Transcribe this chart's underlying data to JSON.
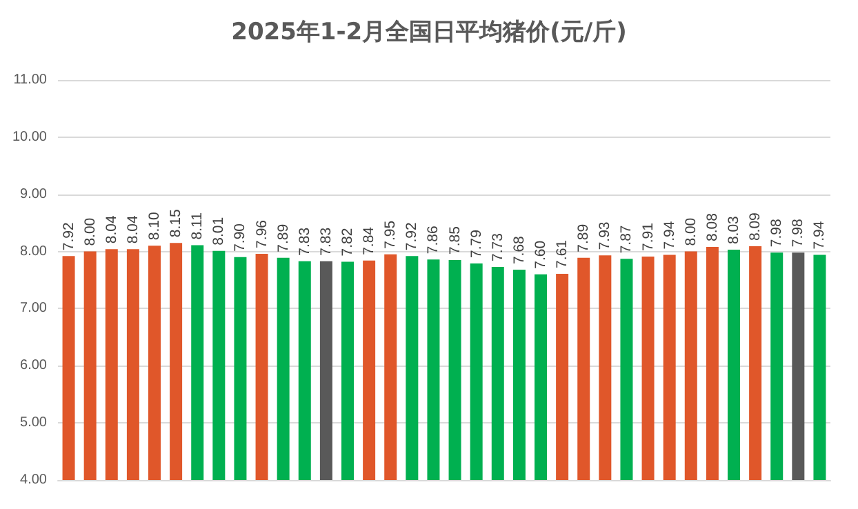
{
  "chart_data": {
    "type": "bar",
    "title": "2025年1-2月全国日平均猪价(元/斤)",
    "categories": [
      null,
      null,
      null,
      null,
      null,
      null,
      null,
      null,
      null,
      null,
      null,
      null,
      null,
      null,
      null,
      null,
      null,
      null,
      null,
      null,
      null,
      null,
      null,
      null,
      null,
      null,
      null,
      null,
      null,
      null,
      null,
      null,
      null,
      null,
      null,
      null
    ],
    "values": [
      7.92,
      8.0,
      8.04,
      8.04,
      8.1,
      8.15,
      8.11,
      8.01,
      7.9,
      7.96,
      7.89,
      7.83,
      7.83,
      7.82,
      7.84,
      7.95,
      7.92,
      7.86,
      7.85,
      7.79,
      7.73,
      7.68,
      7.6,
      7.61,
      7.89,
      7.93,
      7.87,
      7.91,
      7.94,
      8.0,
      8.08,
      8.03,
      8.09,
      7.98,
      7.98,
      7.94
    ],
    "value_labels": [
      "7.92",
      "8.00",
      "8.04",
      "8.04",
      "8.10",
      "8.15",
      "8.11",
      "8.01",
      "7.90",
      "7.96",
      "7.89",
      "7.83",
      "7.83",
      "7.82",
      "7.84",
      "7.95",
      "7.92",
      "7.86",
      "7.85",
      "7.79",
      "7.73",
      "7.68",
      "7.60",
      "7.61",
      "7.89",
      "7.93",
      "7.87",
      "7.91",
      "7.94",
      "8.00",
      "8.08",
      "8.03",
      "8.09",
      "7.98",
      "7.98",
      "7.94"
    ],
    "colors": [
      "#e0572a",
      "#e0572a",
      "#e0572a",
      "#e0572a",
      "#e0572a",
      "#e0572a",
      "#00b050",
      "#00b050",
      "#00b050",
      "#e0572a",
      "#00b050",
      "#00b050",
      "#595959",
      "#00b050",
      "#e0572a",
      "#e0572a",
      "#00b050",
      "#00b050",
      "#00b050",
      "#00b050",
      "#00b050",
      "#00b050",
      "#00b050",
      "#e0572a",
      "#e0572a",
      "#e0572a",
      "#00b050",
      "#e0572a",
      "#e0572a",
      "#e0572a",
      "#e0572a",
      "#00b050",
      "#e0572a",
      "#00b050",
      "#595959",
      "#00b050"
    ],
    "ylim": [
      4,
      11
    ],
    "yticks": [
      {
        "value": 4,
        "label": "4.00"
      },
      {
        "value": 5,
        "label": "5.00"
      },
      {
        "value": 6,
        "label": "6.00"
      },
      {
        "value": 7,
        "label": "7.00"
      },
      {
        "value": 8,
        "label": "8.00"
      },
      {
        "value": 9,
        "label": "9.00"
      },
      {
        "value": 10,
        "label": "10.00"
      },
      {
        "value": 11,
        "label": "11.00"
      }
    ],
    "grid": "y"
  }
}
